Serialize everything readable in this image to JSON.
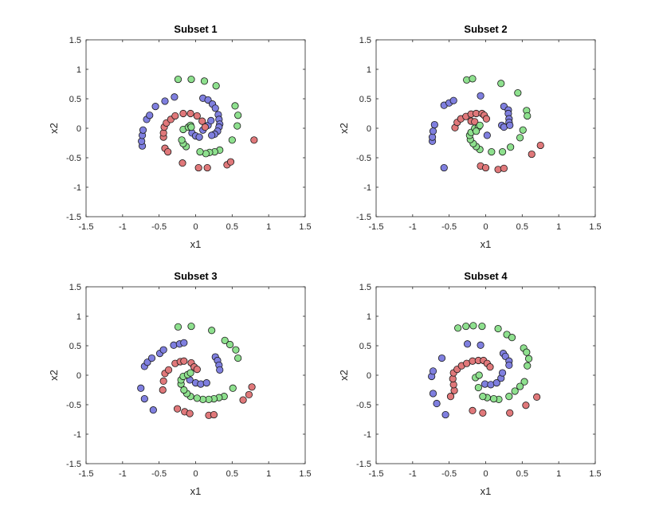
{
  "figure": {
    "background": "#ffffff"
  },
  "chart_data": [
    {
      "type": "scatter",
      "title": "Subset 1",
      "xlabel": "x1",
      "ylabel": "x2",
      "xlim": [
        -1.5,
        1.5
      ],
      "ylim": [
        -1.5,
        1.5
      ],
      "xticks": [
        "-1.5",
        "-1",
        "-0.5",
        "0",
        "0.5",
        "1",
        "1.5"
      ],
      "yticks": [
        "-1.5",
        "-1",
        "-0.5",
        "0",
        "0.5",
        "1",
        "1.5"
      ],
      "grid": false,
      "series": [
        {
          "color": "#7f7fdf",
          "points": [
            [
              -0.73,
              -0.3
            ],
            [
              -0.74,
              -0.22
            ],
            [
              -0.73,
              -0.12
            ],
            [
              -0.72,
              -0.03
            ],
            [
              -0.67,
              0.15
            ],
            [
              -0.63,
              0.22
            ],
            [
              -0.55,
              0.37
            ],
            [
              -0.42,
              0.46
            ],
            [
              -0.29,
              0.53
            ],
            [
              -0.05,
              -0.08
            ],
            [
              0.0,
              -0.13
            ],
            [
              0.05,
              -0.15
            ],
            [
              0.1,
              -0.03
            ],
            [
              0.17,
              0.05
            ],
            [
              0.21,
              0.13
            ],
            [
              0.1,
              0.51
            ],
            [
              0.17,
              0.48
            ],
            [
              0.23,
              0.41
            ],
            [
              0.27,
              0.34
            ],
            [
              0.31,
              0.23
            ],
            [
              0.32,
              0.15
            ],
            [
              0.33,
              0.07
            ],
            [
              0.32,
              0.02
            ],
            [
              0.3,
              -0.05
            ],
            [
              0.26,
              -0.1
            ],
            [
              0.22,
              -0.12
            ]
          ]
        },
        {
          "color": "#e0787a",
          "points": [
            [
              -0.42,
              -0.34
            ],
            [
              -0.38,
              -0.4
            ],
            [
              -0.44,
              -0.15
            ],
            [
              -0.44,
              -0.08
            ],
            [
              -0.43,
              0.02
            ],
            [
              -0.4,
              0.09
            ],
            [
              -0.34,
              0.15
            ],
            [
              -0.28,
              0.21
            ],
            [
              -0.17,
              0.25
            ],
            [
              -0.07,
              0.25
            ],
            [
              0.02,
              0.21
            ],
            [
              0.09,
              0.12
            ],
            [
              0.13,
              0.02
            ],
            [
              -0.18,
              -0.59
            ],
            [
              0.04,
              -0.67
            ],
            [
              0.16,
              -0.67
            ],
            [
              0.43,
              -0.62
            ],
            [
              0.48,
              -0.57
            ],
            [
              0.8,
              -0.2
            ]
          ]
        },
        {
          "color": "#8ee08e",
          "points": [
            [
              -0.24,
              0.83
            ],
            [
              -0.06,
              0.83
            ],
            [
              0.12,
              0.8
            ],
            [
              0.28,
              0.72
            ],
            [
              0.54,
              0.38
            ],
            [
              0.58,
              0.22
            ],
            [
              0.57,
              0.04
            ],
            [
              0.5,
              -0.2
            ],
            [
              0.33,
              -0.37
            ],
            [
              0.26,
              -0.4
            ],
            [
              0.19,
              -0.41
            ],
            [
              0.14,
              -0.43
            ],
            [
              0.06,
              -0.4
            ],
            [
              -0.13,
              -0.31
            ],
            [
              -0.17,
              -0.26
            ],
            [
              -0.19,
              -0.2
            ],
            [
              -0.17,
              -0.02
            ],
            [
              -0.1,
              0.02
            ],
            [
              -0.07,
              0.05
            ],
            [
              -0.06,
              0.02
            ]
          ]
        }
      ]
    },
    {
      "type": "scatter",
      "title": "Subset 2",
      "xlabel": "x1",
      "ylabel": "x2",
      "xlim": [
        -1.5,
        1.5
      ],
      "ylim": [
        -1.5,
        1.5
      ],
      "xticks": [
        "-1.5",
        "-1",
        "-0.5",
        "0",
        "0.5",
        "1",
        "1.5"
      ],
      "yticks": [
        "-1.5",
        "-1",
        "-0.5",
        "0",
        "0.5",
        "1",
        "1.5"
      ],
      "grid": false,
      "series": [
        {
          "color": "#7f7fdf",
          "points": [
            [
              -0.57,
              -0.67
            ],
            [
              -0.73,
              -0.22
            ],
            [
              -0.73,
              -0.15
            ],
            [
              -0.72,
              -0.05
            ],
            [
              -0.7,
              0.06
            ],
            [
              -0.57,
              0.39
            ],
            [
              -0.5,
              0.43
            ],
            [
              -0.44,
              0.47
            ],
            [
              -0.07,
              0.55
            ],
            [
              0.02,
              -0.12
            ],
            [
              0.22,
              0.05
            ],
            [
              0.25,
              0.02
            ],
            [
              0.25,
              0.37
            ],
            [
              0.31,
              0.31
            ],
            [
              0.31,
              0.25
            ],
            [
              0.32,
              0.16
            ],
            [
              0.32,
              0.1
            ],
            [
              0.33,
              0.05
            ]
          ]
        },
        {
          "color": "#e0787a",
          "points": [
            [
              -0.42,
              0.01
            ],
            [
              -0.39,
              0.1
            ],
            [
              -0.34,
              0.16
            ],
            [
              -0.27,
              0.2
            ],
            [
              -0.2,
              0.24
            ],
            [
              -0.13,
              0.25
            ],
            [
              -0.05,
              0.25
            ],
            [
              -0.02,
              0.22
            ],
            [
              0.01,
              0.16
            ],
            [
              -0.2,
              0.12
            ],
            [
              -0.15,
              0.11
            ],
            [
              -0.07,
              -0.64
            ],
            [
              0.0,
              -0.67
            ],
            [
              0.17,
              -0.7
            ],
            [
              0.25,
              -0.68
            ],
            [
              0.63,
              -0.44
            ],
            [
              0.75,
              -0.29
            ]
          ]
        },
        {
          "color": "#8ee08e",
          "points": [
            [
              -0.26,
              0.82
            ],
            [
              -0.18,
              0.84
            ],
            [
              0.21,
              0.76
            ],
            [
              0.44,
              0.6
            ],
            [
              0.56,
              0.3
            ],
            [
              0.57,
              0.21
            ],
            [
              0.51,
              -0.03
            ],
            [
              0.47,
              -0.16
            ],
            [
              0.34,
              -0.32
            ],
            [
              0.23,
              -0.4
            ],
            [
              0.08,
              -0.4
            ],
            [
              -0.08,
              -0.36
            ],
            [
              -0.13,
              -0.31
            ],
            [
              -0.17,
              -0.26
            ],
            [
              -0.21,
              -0.19
            ],
            [
              -0.22,
              -0.12
            ],
            [
              -0.2,
              -0.07
            ],
            [
              -0.15,
              0.0
            ],
            [
              -0.1,
              0.02
            ],
            [
              -0.13,
              -0.05
            ],
            [
              -0.08,
              0.05
            ]
          ]
        }
      ]
    },
    {
      "type": "scatter",
      "title": "Subset 3",
      "xlabel": "x1",
      "ylabel": "x2",
      "xlim": [
        -1.5,
        1.5
      ],
      "ylim": [
        -1.5,
        1.5
      ],
      "xticks": [
        "-1.5",
        "-1",
        "-0.5",
        "0",
        "0.5",
        "1",
        "1.5"
      ],
      "yticks": [
        "-1.5",
        "-1",
        "-0.5",
        "0",
        "0.5",
        "1",
        "1.5"
      ],
      "grid": false,
      "series": [
        {
          "color": "#7f7fdf",
          "points": [
            [
              -0.58,
              -0.59
            ],
            [
              -0.7,
              -0.4
            ],
            [
              -0.75,
              -0.22
            ],
            [
              -0.7,
              0.15
            ],
            [
              -0.66,
              0.22
            ],
            [
              -0.6,
              0.29
            ],
            [
              -0.49,
              0.37
            ],
            [
              -0.44,
              0.43
            ],
            [
              -0.3,
              0.51
            ],
            [
              -0.22,
              0.53
            ],
            [
              -0.16,
              0.55
            ],
            [
              -0.08,
              -0.08
            ],
            [
              0.0,
              -0.13
            ],
            [
              0.07,
              -0.15
            ],
            [
              0.15,
              -0.13
            ],
            [
              0.27,
              0.31
            ],
            [
              0.3,
              0.25
            ],
            [
              0.32,
              0.17
            ],
            [
              0.33,
              0.09
            ]
          ]
        },
        {
          "color": "#e0787a",
          "points": [
            [
              -0.45,
              -0.25
            ],
            [
              -0.44,
              -0.1
            ],
            [
              -0.42,
              0.03
            ],
            [
              -0.37,
              0.09
            ],
            [
              -0.28,
              0.2
            ],
            [
              -0.21,
              0.23
            ],
            [
              -0.16,
              0.24
            ],
            [
              -0.06,
              0.21
            ],
            [
              -0.02,
              0.14
            ],
            [
              0.02,
              0.1
            ],
            [
              -0.25,
              -0.57
            ],
            [
              -0.15,
              -0.62
            ],
            [
              -0.08,
              -0.65
            ],
            [
              0.18,
              -0.68
            ],
            [
              0.25,
              -0.67
            ],
            [
              0.65,
              -0.42
            ],
            [
              0.73,
              -0.33
            ],
            [
              0.77,
              -0.2
            ]
          ]
        },
        {
          "color": "#8ee08e",
          "points": [
            [
              -0.24,
              0.82
            ],
            [
              -0.06,
              0.83
            ],
            [
              0.22,
              0.76
            ],
            [
              0.4,
              0.59
            ],
            [
              0.47,
              0.52
            ],
            [
              0.55,
              0.43
            ],
            [
              0.58,
              0.29
            ],
            [
              0.51,
              -0.22
            ],
            [
              0.39,
              -0.36
            ],
            [
              0.32,
              -0.38
            ],
            [
              0.25,
              -0.4
            ],
            [
              0.18,
              -0.41
            ],
            [
              0.1,
              -0.41
            ],
            [
              0.02,
              -0.39
            ],
            [
              -0.07,
              -0.36
            ],
            [
              -0.12,
              -0.31
            ],
            [
              -0.16,
              -0.25
            ],
            [
              -0.2,
              -0.15
            ],
            [
              -0.2,
              -0.08
            ],
            [
              -0.17,
              -0.02
            ],
            [
              -0.11,
              0.01
            ],
            [
              -0.07,
              0.04
            ]
          ]
        }
      ]
    },
    {
      "type": "scatter",
      "title": "Subset 4",
      "xlabel": "x1",
      "ylabel": "x2",
      "xlim": [
        -1.5,
        1.5
      ],
      "ylim": [
        -1.5,
        1.5
      ],
      "xticks": [
        "-1.5",
        "-1",
        "-0.5",
        "0",
        "0.5",
        "1",
        "1.5"
      ],
      "yticks": [
        "-1.5",
        "-1",
        "-0.5",
        "0",
        "0.5",
        "1",
        "1.5"
      ],
      "grid": false,
      "series": [
        {
          "color": "#7f7fdf",
          "points": [
            [
              -0.55,
              -0.67
            ],
            [
              -0.67,
              -0.48
            ],
            [
              -0.72,
              -0.31
            ],
            [
              -0.74,
              -0.02
            ],
            [
              -0.72,
              0.07
            ],
            [
              -0.6,
              0.29
            ],
            [
              -0.25,
              0.53
            ],
            [
              -0.07,
              0.51
            ],
            [
              -0.01,
              -0.15
            ],
            [
              0.07,
              -0.16
            ],
            [
              0.15,
              -0.13
            ],
            [
              0.21,
              -0.05
            ],
            [
              0.23,
              0.04
            ],
            [
              0.24,
              0.37
            ],
            [
              0.27,
              0.32
            ],
            [
              0.32,
              0.24
            ],
            [
              0.32,
              0.17
            ]
          ]
        },
        {
          "color": "#e0787a",
          "points": [
            [
              -0.48,
              -0.36
            ],
            [
              -0.43,
              -0.26
            ],
            [
              -0.44,
              -0.16
            ],
            [
              -0.45,
              -0.06
            ],
            [
              -0.44,
              0.04
            ],
            [
              -0.39,
              0.1
            ],
            [
              -0.33,
              0.16
            ],
            [
              -0.26,
              0.2
            ],
            [
              -0.18,
              0.24
            ],
            [
              -0.1,
              0.25
            ],
            [
              -0.03,
              0.25
            ],
            [
              0.02,
              0.2
            ],
            [
              0.06,
              0.14
            ],
            [
              -0.18,
              -0.6
            ],
            [
              -0.04,
              -0.64
            ],
            [
              0.33,
              -0.64
            ],
            [
              0.55,
              -0.51
            ],
            [
              0.7,
              -0.37
            ]
          ]
        },
        {
          "color": "#8ee08e",
          "points": [
            [
              -0.38,
              0.8
            ],
            [
              -0.27,
              0.83
            ],
            [
              -0.17,
              0.84
            ],
            [
              -0.05,
              0.83
            ],
            [
              0.17,
              0.79
            ],
            [
              0.29,
              0.69
            ],
            [
              0.36,
              0.64
            ],
            [
              0.52,
              0.46
            ],
            [
              0.56,
              0.39
            ],
            [
              0.59,
              0.28
            ],
            [
              0.57,
              0.16
            ],
            [
              0.53,
              -0.11
            ],
            [
              0.47,
              -0.19
            ],
            [
              0.4,
              -0.27
            ],
            [
              0.32,
              -0.36
            ],
            [
              0.18,
              -0.41
            ],
            [
              0.11,
              -0.4
            ],
            [
              0.02,
              -0.38
            ],
            [
              -0.04,
              -0.36
            ],
            [
              -0.1,
              -0.21
            ],
            [
              -0.14,
              -0.04
            ],
            [
              -0.09,
              0.0
            ]
          ]
        }
      ]
    }
  ]
}
